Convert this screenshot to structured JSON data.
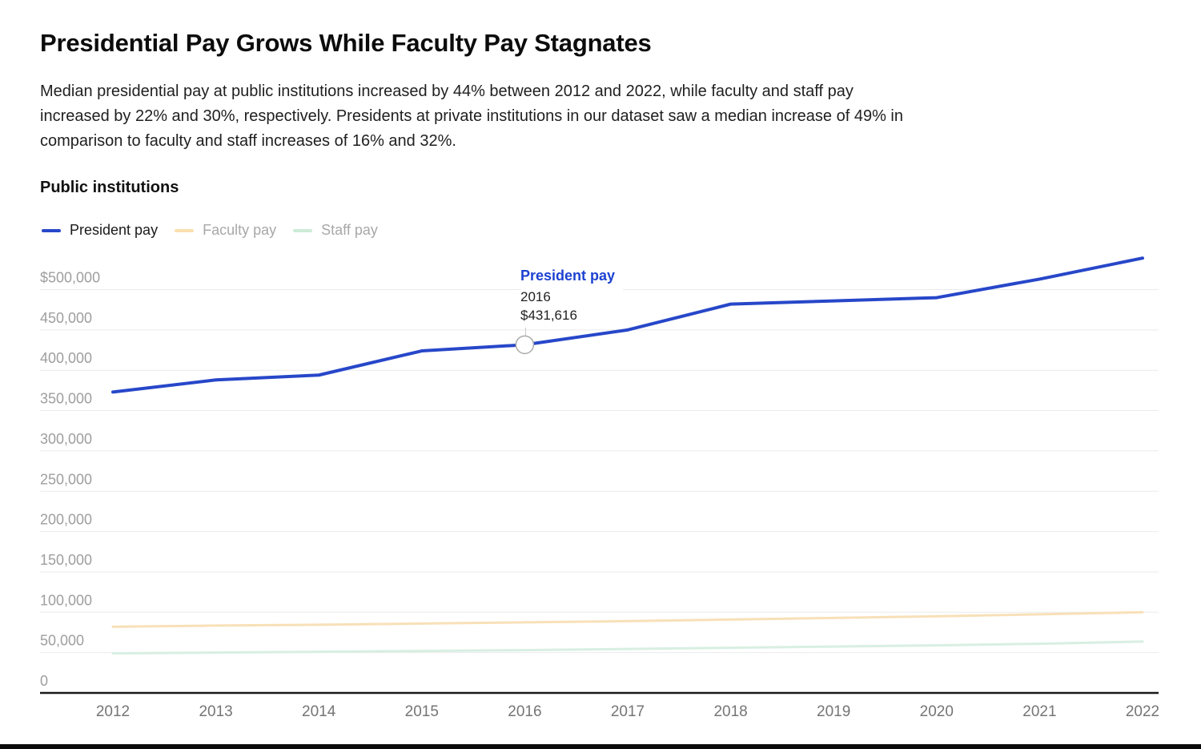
{
  "header": {
    "title": "Presidential Pay Grows While Faculty Pay Stagnates",
    "subtitle_lines": [
      "Median presidential pay at public institutions increased by 44% between 2012 and 2022, while faculty and staff pay",
      "increased by 22% and 30%, respectively. Presidents at private institutions in our dataset saw a median increase of 49% in",
      "comparison to faculty and staff increases of 16% and 32%."
    ]
  },
  "section": {
    "title": "Public institutions"
  },
  "colors": {
    "legend_active_text": "#1a1a1a",
    "legend_inactive_text": "#a8a8a8",
    "y_tick_text": "#9e9e9e",
    "x_tick_text": "#757575",
    "gridline": "#ebebeb",
    "axis_line": "#1a1a1a",
    "tooltip_title": "#1d42d1",
    "tooltip_text": "#212121",
    "marker_stroke": "#ababab",
    "connector_line": "#c4c4c4"
  },
  "chart_data": {
    "type": "line",
    "title": "Public institutions",
    "xlabel": "",
    "ylabel": "",
    "grid": true,
    "legend_position": "top-left",
    "x": [
      2012,
      2013,
      2014,
      2015,
      2016,
      2017,
      2018,
      2019,
      2020,
      2021,
      2022
    ],
    "ylim": [
      0,
      500000
    ],
    "yticks": [
      {
        "value": 0,
        "label": "0"
      },
      {
        "value": 50000,
        "label": "50,000"
      },
      {
        "value": 100000,
        "label": "100,000"
      },
      {
        "value": 150000,
        "label": "150,000"
      },
      {
        "value": 200000,
        "label": "200,000"
      },
      {
        "value": 250000,
        "label": "250,000"
      },
      {
        "value": 300000,
        "label": "300,000"
      },
      {
        "value": 350000,
        "label": "350,000"
      },
      {
        "value": 400000,
        "label": "400,000"
      },
      {
        "value": 450000,
        "label": "450,000"
      },
      {
        "value": 500000,
        "label": "$500,000"
      }
    ],
    "series": [
      {
        "name": "President pay",
        "active": true,
        "swatch_color": "#2747c9",
        "line_color": "#2747c9",
        "line_width": 4,
        "values": [
          373000,
          388000,
          394000,
          424000,
          431616,
          450000,
          482000,
          486000,
          490000,
          513000,
          539000
        ]
      },
      {
        "name": "Faculty pay",
        "active": false,
        "swatch_color": "#fbdfae",
        "line_color": "#f8e0b8",
        "line_width": 3,
        "values": [
          82000,
          83500,
          84500,
          86000,
          87500,
          89000,
          91000,
          93000,
          95000,
          97500,
          100000
        ]
      },
      {
        "name": "Staff pay",
        "active": false,
        "swatch_color": "#cdebd8",
        "line_color": "#d8efe2",
        "line_width": 3,
        "values": [
          49000,
          50000,
          51000,
          52000,
          53000,
          54500,
          56000,
          57500,
          59000,
          61000,
          63700
        ]
      }
    ],
    "tooltip": {
      "series": "President pay",
      "year": "2016",
      "value": "$431,616",
      "year_value": 2016,
      "value_numeric": 431616
    }
  }
}
